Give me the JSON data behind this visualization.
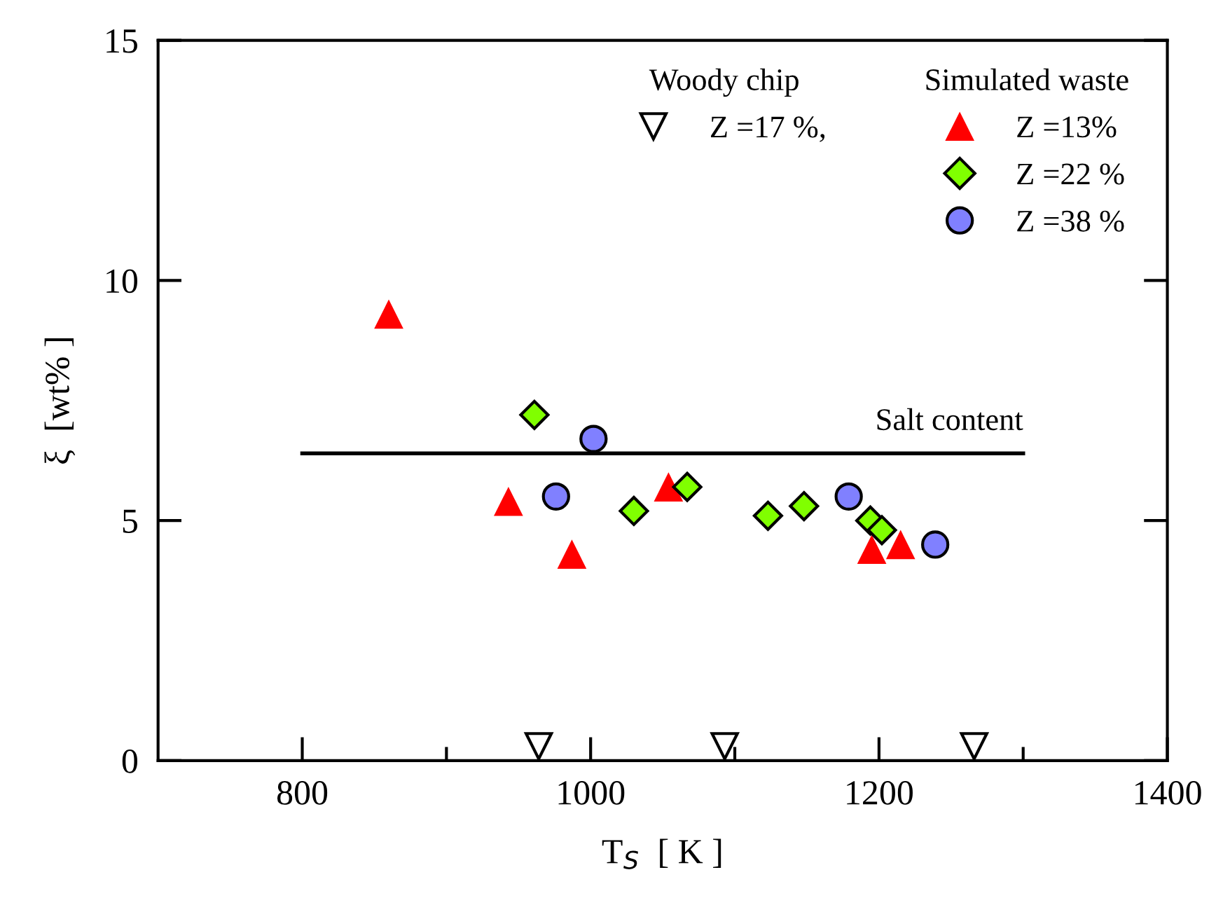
{
  "chart_data": {
    "type": "scatter",
    "xlabel": "T$_{S}$  [ K ]",
    "ylabel": "ξ  [wt% ]",
    "xlim": [
      700,
      1400
    ],
    "xticks": [
      800,
      {
        "value": 900,
        "label": null
      },
      1000,
      {
        "value": 1100,
        "label": null
      },
      1200,
      {
        "value": 1300,
        "label": null
      },
      1400
    ],
    "ylim": [
      0,
      15
    ],
    "yticks": [
      0,
      5,
      10,
      15
    ],
    "grid": false,
    "legend": "top right",
    "annotations": [
      "Woody chip",
      "Simulated waste"
    ],
    "series": [
      {
        "name": "Z =17 %,",
        "marker": "triangle_down",
        "color": "#ffffff",
        "x": [
          964,
          1093,
          1266
        ],
        "values": [
          0.3,
          0.3,
          0.3
        ]
      },
      {
        "name": "Z =13%",
        "marker": "triangle",
        "color": "#ff0000",
        "x": [
          860,
          943,
          987,
          1054,
          1195,
          1215
        ],
        "values": [
          9.3,
          5.4,
          4.3,
          5.7,
          4.4,
          4.5
        ]
      },
      {
        "name": "Z =22 %",
        "marker": "diamond",
        "color": "#80ff00",
        "x": [
          961,
          1030,
          1067,
          1123,
          1148,
          1194,
          1202
        ],
        "values": [
          7.2,
          5.2,
          5.7,
          5.1,
          5.3,
          5.0,
          4.8
        ]
      },
      {
        "name": "Z =38 %",
        "marker": "circle",
        "color": "#8080ff",
        "x": [
          1002,
          976,
          1179,
          1239
        ],
        "values": [
          6.7,
          5.5,
          5.5,
          4.5
        ]
      },
      {
        "name": "Salt content",
        "type": "line",
        "color": "#000000",
        "line_style": "solid",
        "marker": "none",
        "x": [
          800,
          1300
        ],
        "values": [
          6.4,
          6.4
        ]
      }
    ]
  }
}
